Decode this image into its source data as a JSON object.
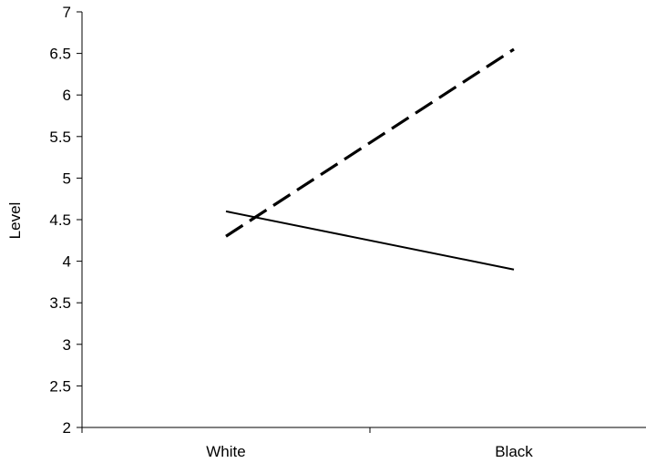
{
  "chart_data": {
    "type": "line",
    "title": "",
    "xlabel": "",
    "ylabel": "Level",
    "categories": [
      "White",
      "Black"
    ],
    "ylim": [
      2,
      7
    ],
    "yticks": [
      "2",
      "2.5",
      "3",
      "3.5",
      "4",
      "4.5",
      "5",
      "5.5",
      "6",
      "6.5",
      "7"
    ],
    "grid": false,
    "series": [
      {
        "values": [
          4.6,
          3.9
        ],
        "line_style": "solid",
        "color": "#000000"
      },
      {
        "values": [
          4.3,
          6.55
        ],
        "line_style": "dashed",
        "color": "#000000"
      }
    ]
  }
}
